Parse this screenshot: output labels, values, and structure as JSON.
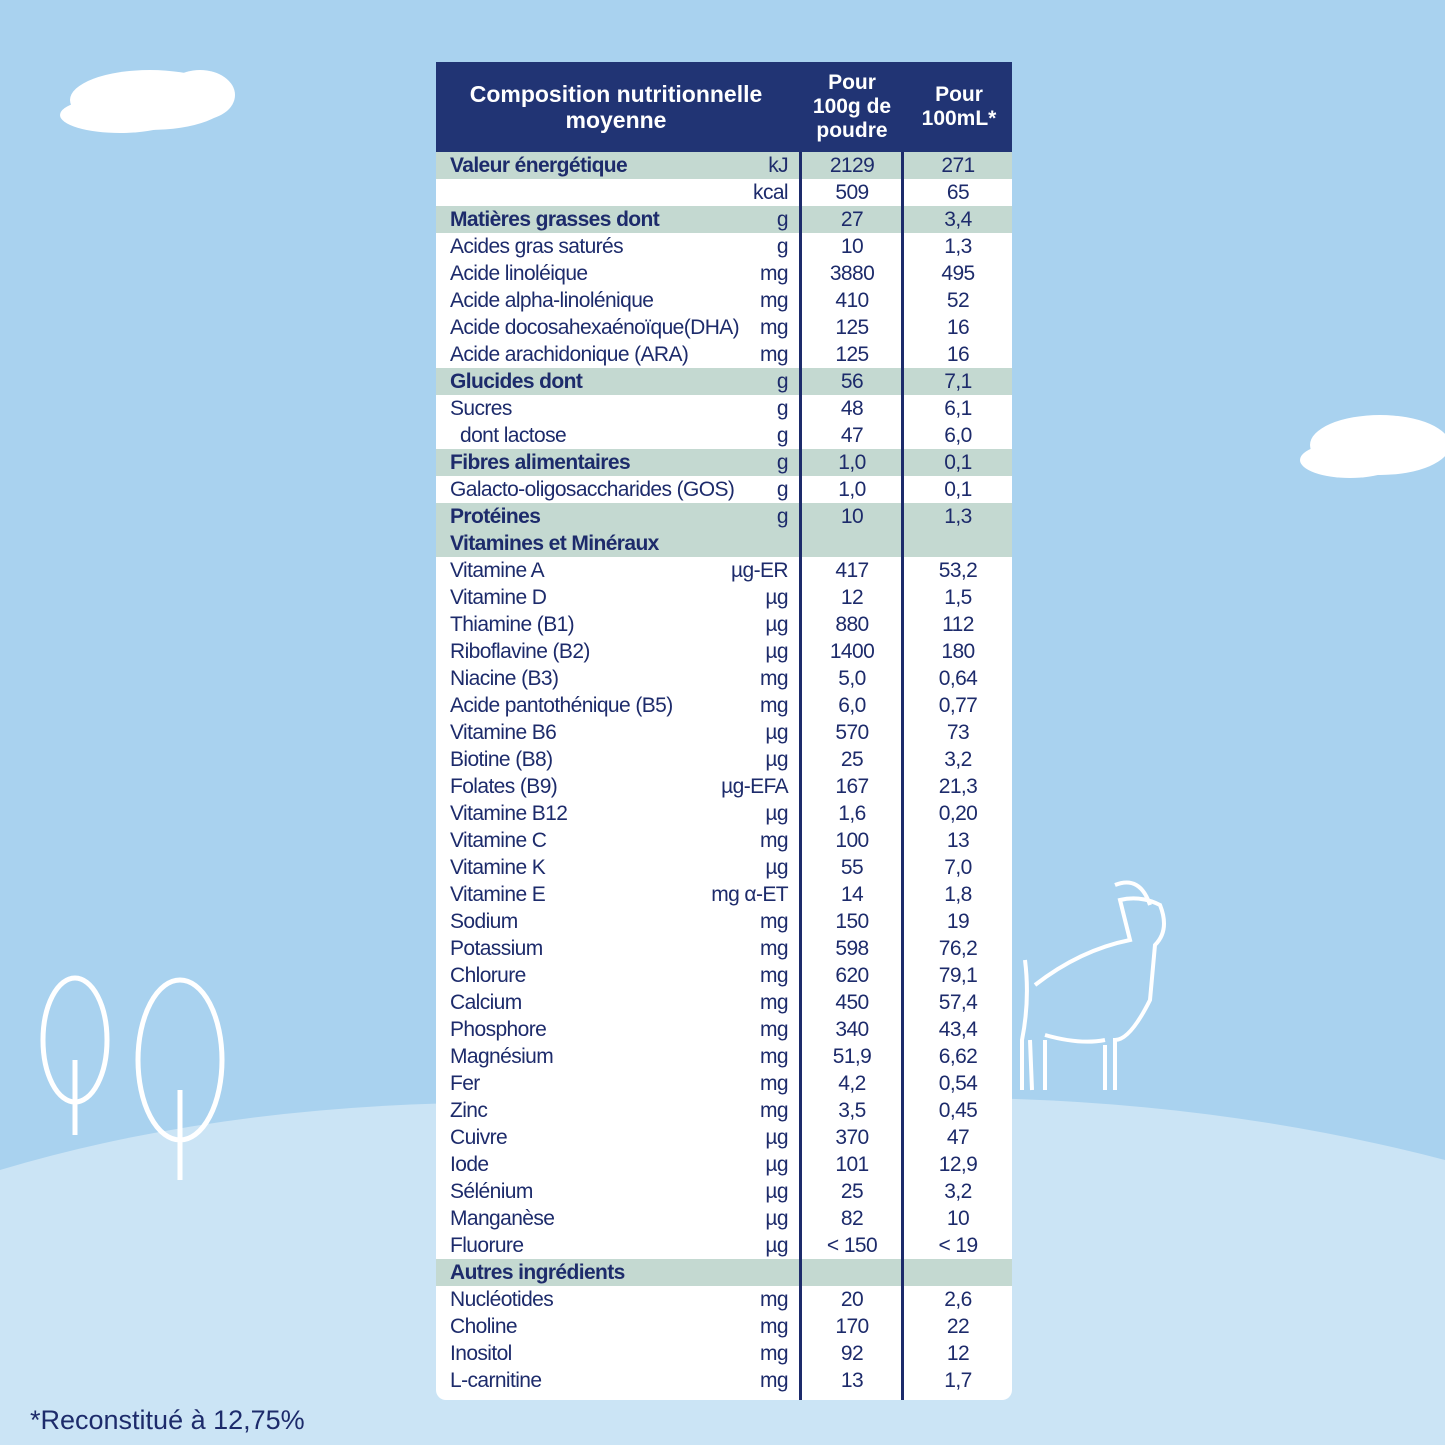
{
  "table": {
    "header": [
      "Composition nutritionnelle moyenne",
      "Pour 100g de poudre",
      "Pour 100mL*"
    ],
    "rows": [
      {
        "name": "Valeur énergétique",
        "unit": "kJ",
        "per100g": "2129",
        "per100ml": "271",
        "section": true
      },
      {
        "unit": "kcal",
        "per100g": "509",
        "per100ml": "65"
      },
      {
        "name": "Matières grasses dont",
        "unit": "g",
        "per100g": "27",
        "per100ml": "3,4",
        "section": true
      },
      {
        "name": "Acides gras saturés",
        "unit": "g",
        "per100g": "10",
        "per100ml": "1,3"
      },
      {
        "name": "Acide linoléique",
        "unit": "mg",
        "per100g": "3880",
        "per100ml": "495"
      },
      {
        "name": "Acide alpha-linolénique",
        "unit": "mg",
        "per100g": "410",
        "per100ml": "52"
      },
      {
        "name": "Acide docosahexaénoïque(DHA)",
        "unit": "mg",
        "per100g": "125",
        "per100ml": "16"
      },
      {
        "name": "Acide arachidonique (ARA)",
        "unit": "mg",
        "per100g": "125",
        "per100ml": "16"
      },
      {
        "name": "Glucides dont",
        "unit": "g",
        "per100g": "56",
        "per100ml": "7,1",
        "section": true
      },
      {
        "name": "Sucres",
        "unit": "g",
        "per100g": "48",
        "per100ml": "6,1"
      },
      {
        "name": "dont lactose",
        "unit": "g",
        "per100g": "47",
        "per100ml": "6,0",
        "indent": true
      },
      {
        "name": "Fibres alimentaires",
        "unit": "g",
        "per100g": "1,0",
        "per100ml": "0,1",
        "section": true
      },
      {
        "name": "Galacto-oligosaccharides (GOS)",
        "unit": "g",
        "per100g": "1,0",
        "per100ml": "0,1"
      },
      {
        "name": "Protéines",
        "unit": "g",
        "per100g": "10",
        "per100ml": "1,3",
        "section": true
      },
      {
        "name": "Vitamines et Minéraux",
        "section": true
      },
      {
        "name": "Vitamine A",
        "unit": "µg-ER",
        "per100g": "417",
        "per100ml": "53,2"
      },
      {
        "name": "Vitamine D",
        "unit": "µg",
        "per100g": "12",
        "per100ml": "1,5"
      },
      {
        "name": "Thiamine (B1)",
        "unit": "µg",
        "per100g": "880",
        "per100ml": "112"
      },
      {
        "name": "Riboflavine (B2)",
        "unit": "µg",
        "per100g": "1400",
        "per100ml": "180"
      },
      {
        "name": "Niacine (B3)",
        "unit": "mg",
        "per100g": "5,0",
        "per100ml": "0,64"
      },
      {
        "name": "Acide pantothénique (B5)",
        "unit": "mg",
        "per100g": "6,0",
        "per100ml": "0,77"
      },
      {
        "name": "Vitamine B6",
        "unit": "µg",
        "per100g": "570",
        "per100ml": "73"
      },
      {
        "name": "Biotine (B8)",
        "unit": "µg",
        "per100g": "25",
        "per100ml": "3,2"
      },
      {
        "name": "Folates (B9)",
        "unit": "µg-EFA",
        "per100g": "167",
        "per100ml": "21,3"
      },
      {
        "name": "Vitamine B12",
        "unit": "µg",
        "per100g": "1,6",
        "per100ml": "0,20"
      },
      {
        "name": "Vitamine C",
        "unit": "mg",
        "per100g": "100",
        "per100ml": "13"
      },
      {
        "name": "Vitamine K",
        "unit": "µg",
        "per100g": "55",
        "per100ml": "7,0"
      },
      {
        "name": "Vitamine E",
        "unit": "mg α-ET",
        "per100g": "14",
        "per100ml": "1,8"
      },
      {
        "name": "Sodium",
        "unit": "mg",
        "per100g": "150",
        "per100ml": "19"
      },
      {
        "name": "Potassium",
        "unit": "mg",
        "per100g": "598",
        "per100ml": "76,2"
      },
      {
        "name": "Chlorure",
        "unit": "mg",
        "per100g": "620",
        "per100ml": "79,1"
      },
      {
        "name": "Calcium",
        "unit": "mg",
        "per100g": "450",
        "per100ml": "57,4"
      },
      {
        "name": "Phosphore",
        "unit": "mg",
        "per100g": "340",
        "per100ml": "43,4"
      },
      {
        "name": "Magnésium",
        "unit": "mg",
        "per100g": "51,9",
        "per100ml": "6,62"
      },
      {
        "name": "Fer",
        "unit": "mg",
        "per100g": "4,2",
        "per100ml": "0,54"
      },
      {
        "name": "Zinc",
        "unit": "mg",
        "per100g": "3,5",
        "per100ml": "0,45"
      },
      {
        "name": "Cuivre",
        "unit": "µg",
        "per100g": "370",
        "per100ml": "47"
      },
      {
        "name": "Iode",
        "unit": "µg",
        "per100g": "101",
        "per100ml": "12,9"
      },
      {
        "name": "Sélénium",
        "unit": "µg",
        "per100g": "25",
        "per100ml": "3,2"
      },
      {
        "name": "Manganèse",
        "unit": "µg",
        "per100g": "82",
        "per100ml": "10"
      },
      {
        "name": "Fluorure",
        "unit": "µg",
        "per100g": "< 150",
        "per100ml": "< 19"
      },
      {
        "name": "Autres ingrédients",
        "section": true
      },
      {
        "name": "Nucléotides",
        "unit": "mg",
        "per100g": "20",
        "per100ml": "2,6"
      },
      {
        "name": "Choline",
        "unit": "mg",
        "per100g": "170",
        "per100ml": "22"
      },
      {
        "name": "Inositol",
        "unit": "mg",
        "per100g": "92",
        "per100ml": "12"
      },
      {
        "name": "L-carnitine",
        "unit": "mg",
        "per100g": "13",
        "per100ml": "1,7"
      }
    ]
  },
  "footnote": "*Reconstitué à 12,75%"
}
